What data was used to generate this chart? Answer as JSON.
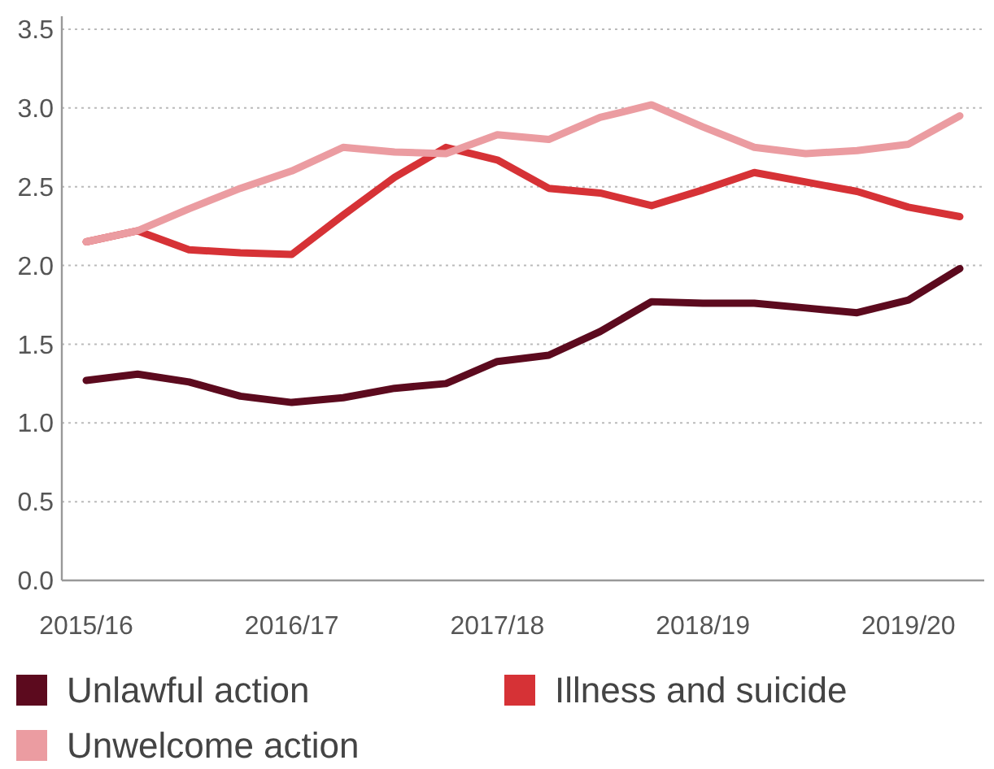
{
  "chart_data": {
    "type": "line",
    "categories": [
      "2015/16",
      null,
      null,
      null,
      "2016/17",
      null,
      null,
      null,
      "2017/18",
      null,
      null,
      null,
      "2018/19",
      null,
      null,
      null,
      "2019/20",
      null
    ],
    "series": [
      {
        "name": "Unlawful action",
        "color": "#5c0a1e",
        "values": [
          1.27,
          1.31,
          1.26,
          1.17,
          1.13,
          1.16,
          1.22,
          1.25,
          1.39,
          1.43,
          1.58,
          1.77,
          1.76,
          1.76,
          1.73,
          1.7,
          1.78,
          1.98
        ]
      },
      {
        "name": "Illness and suicide",
        "color": "#d63236",
        "values": [
          2.15,
          2.22,
          2.1,
          2.08,
          2.07,
          2.32,
          2.56,
          2.75,
          2.67,
          2.49,
          2.46,
          2.38,
          2.48,
          2.59,
          2.53,
          2.47,
          2.37,
          2.31
        ]
      },
      {
        "name": "Unwelcome action",
        "color": "#eb9ca1",
        "values": [
          2.15,
          2.22,
          2.36,
          2.49,
          2.6,
          2.75,
          2.72,
          2.71,
          2.83,
          2.8,
          2.94,
          3.02,
          2.88,
          2.75,
          2.71,
          2.73,
          2.77,
          2.95
        ]
      }
    ],
    "ylim": [
      0,
      3.5
    ],
    "yticks": [
      {
        "value": 0,
        "label": "0.0"
      },
      {
        "value": 0.5,
        "label": "0.5"
      },
      {
        "value": 1,
        "label": "1.0"
      },
      {
        "value": 1.5,
        "label": "1.5"
      },
      {
        "value": 2,
        "label": "2.0"
      },
      {
        "value": 2.5,
        "label": "2.5"
      },
      {
        "value": 3,
        "label": "3.0"
      },
      {
        "value": 3.5,
        "label": "3.5"
      }
    ],
    "grid": "y",
    "legend": "bottom",
    "marker": "none",
    "line_style": "solid"
  }
}
